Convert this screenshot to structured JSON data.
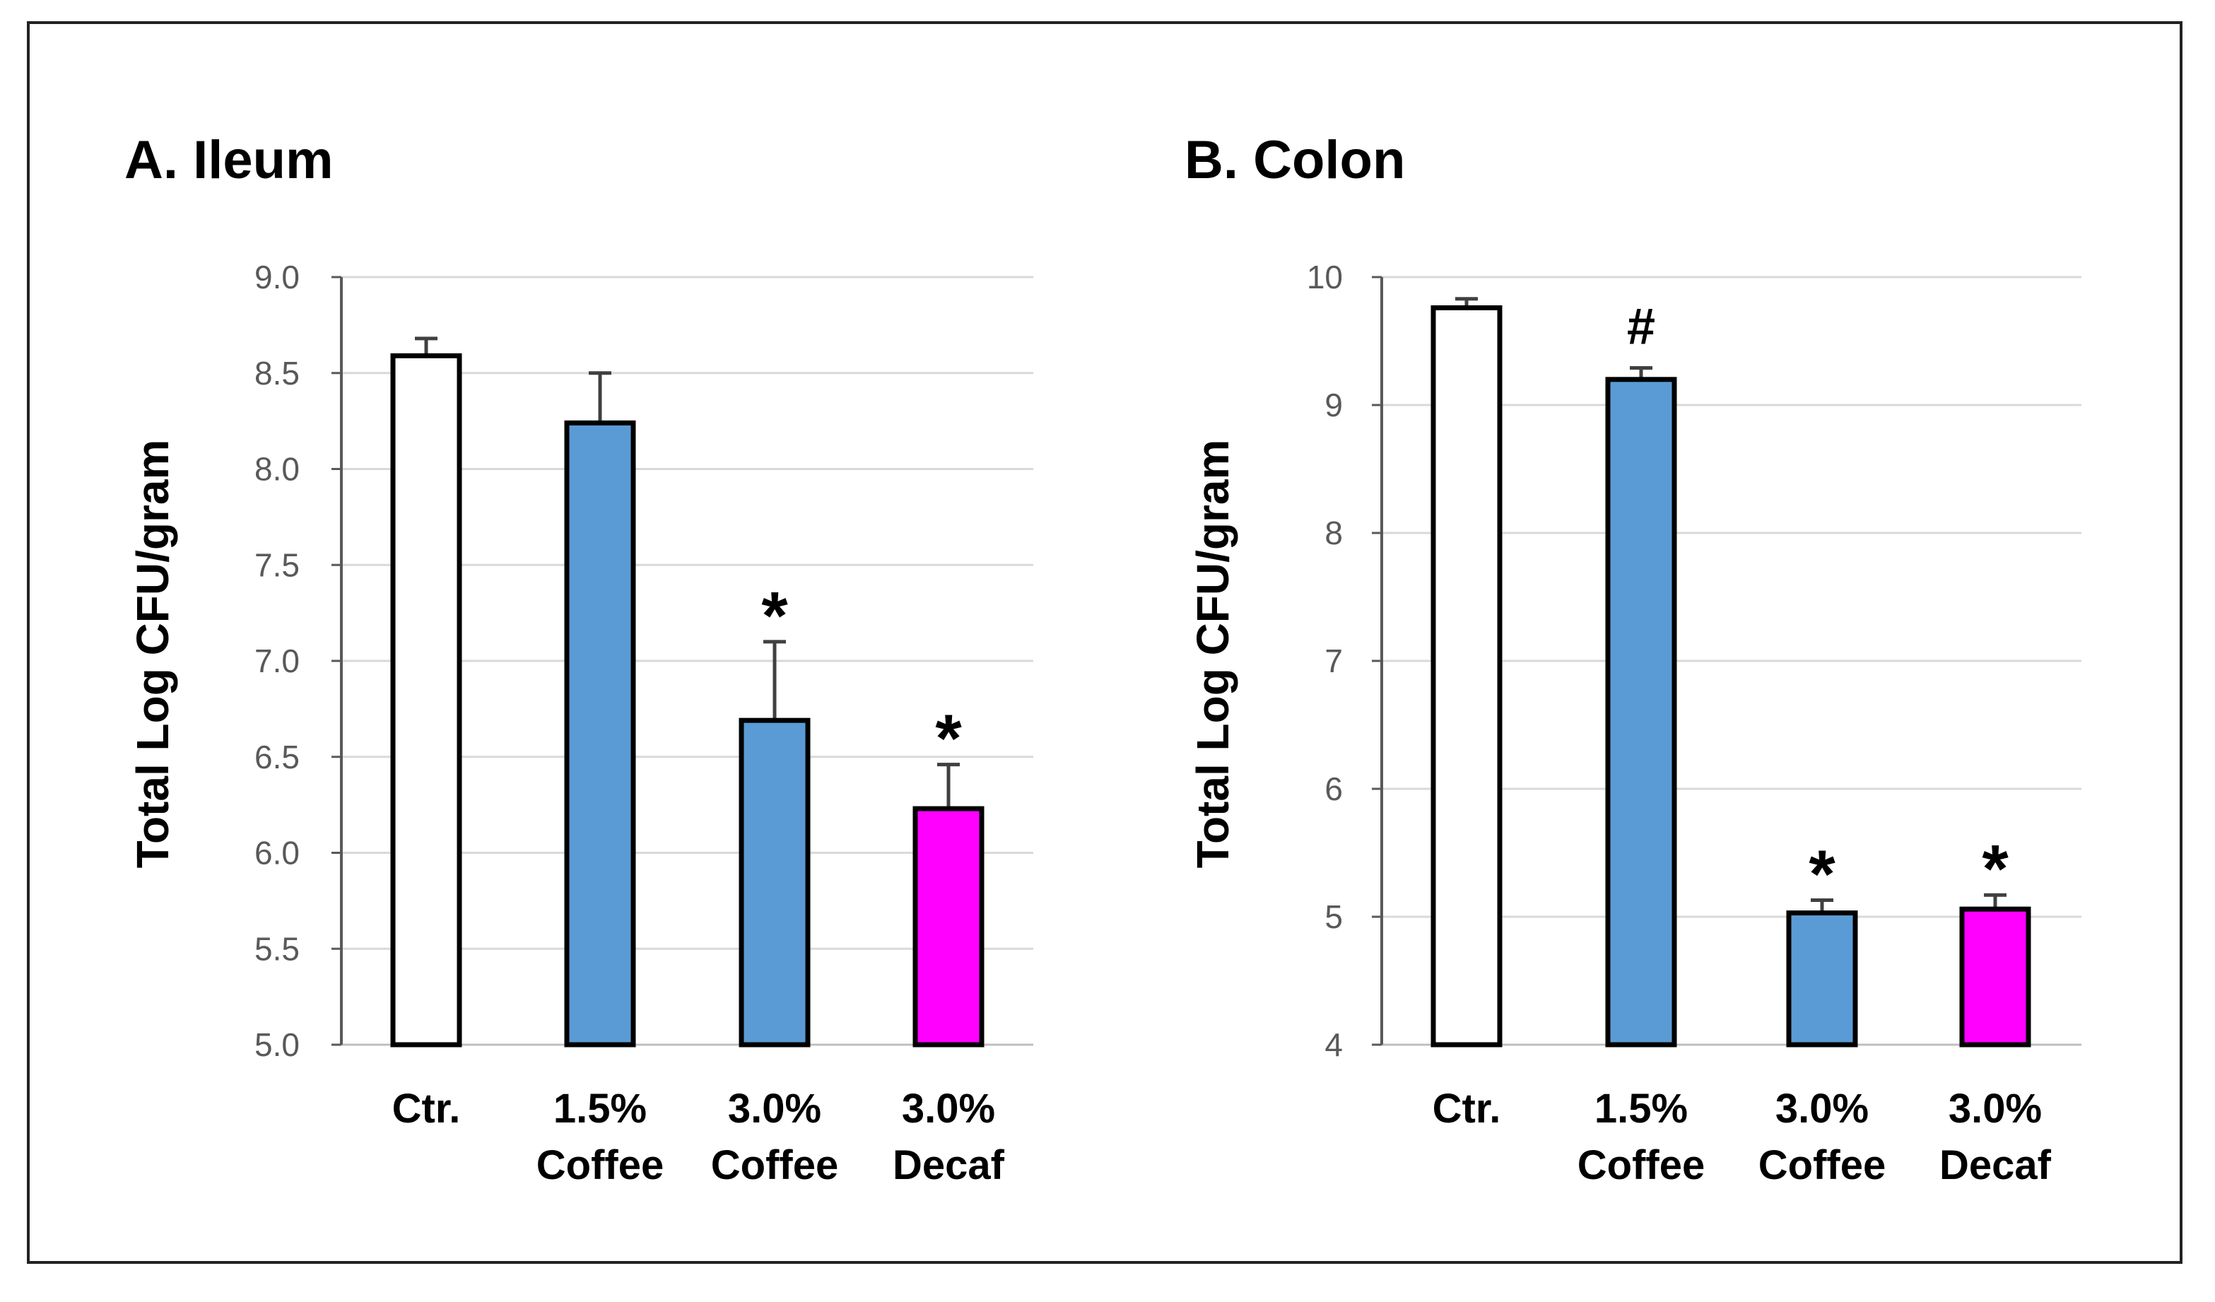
{
  "chart_data": [
    {
      "type": "bar",
      "title": "A. Ileum",
      "xlabel": "",
      "ylabel": "Total Log CFU/gram",
      "ylim": [
        5.0,
        9.0
      ],
      "yticks": [
        "5.0",
        "5.5",
        "6.0",
        "6.5",
        "7.0",
        "7.5",
        "8.0",
        "8.5",
        "9.0"
      ],
      "categories": [
        [
          "Ctr."
        ],
        [
          "1.5%",
          "Coffee"
        ],
        [
          "3.0%",
          "Coffee"
        ],
        [
          "3.0%",
          "Decaf"
        ]
      ],
      "values": [
        8.59,
        8.24,
        6.69,
        6.23
      ],
      "errors": [
        0.09,
        0.26,
        0.41,
        0.23
      ],
      "colors": [
        "#ffffff",
        "#5b9bd5",
        "#5b9bd5",
        "#ff00ff"
      ],
      "annotations": [
        "",
        "",
        "*",
        "*"
      ],
      "grid": true
    },
    {
      "type": "bar",
      "title": "B. Colon",
      "xlabel": "",
      "ylabel": "Total Log CFU/gram",
      "ylim": [
        4,
        10
      ],
      "yticks": [
        "4",
        "5",
        "6",
        "7",
        "8",
        "9",
        "10"
      ],
      "categories": [
        [
          "Ctr."
        ],
        [
          "1.5%",
          "Coffee"
        ],
        [
          "3.0%",
          "Coffee"
        ],
        [
          "3.0%",
          "Decaf"
        ]
      ],
      "values": [
        9.76,
        9.2,
        5.03,
        5.06
      ],
      "errors": [
        0.07,
        0.09,
        0.1,
        0.11
      ],
      "colors": [
        "#ffffff",
        "#5b9bd5",
        "#5b9bd5",
        "#ff00ff"
      ],
      "annotations": [
        "",
        "#",
        "*",
        "*"
      ],
      "grid": true
    }
  ]
}
